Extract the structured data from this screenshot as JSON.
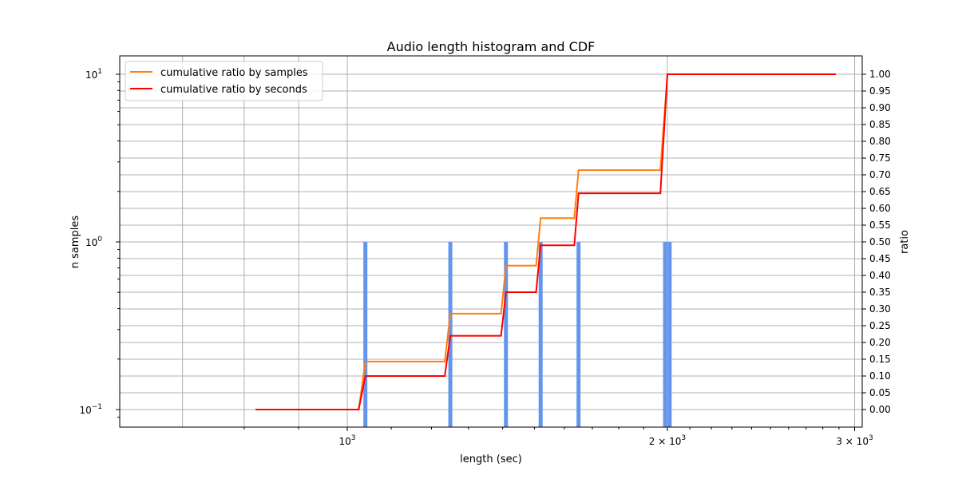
{
  "chart_data": {
    "type": "bar+line",
    "title": "Audio length histogram and CDF",
    "xlabel": "length (sec)",
    "ylabel": "n samples",
    "ylabel_right": "ratio",
    "xscale": "log",
    "yscale": "log",
    "xlim": [
      720,
      3100
    ],
    "ylim": [
      0.08,
      12.5
    ],
    "ylim_right": [
      -0.05,
      1.05
    ],
    "grid": true,
    "legend_position": "upper left",
    "x_ticks": [
      {
        "value": 1000,
        "label": "10^3",
        "base": "10",
        "exp": "3"
      },
      {
        "value": 2000,
        "label": "2×10^3",
        "base": "2 × 10",
        "exp": "3"
      },
      {
        "value": 3000,
        "label": "3×10^3",
        "base": "3 × 10",
        "exp": "3"
      }
    ],
    "y_ticks": [
      {
        "value": 0.1,
        "base": "10",
        "exp": "−1"
      },
      {
        "value": 1,
        "base": "10",
        "exp": "0"
      },
      {
        "value": 10,
        "base": "10",
        "exp": "1"
      }
    ],
    "y_ticks_right": [
      "0.00",
      "0.05",
      "0.10",
      "0.15",
      "0.20",
      "0.25",
      "0.30",
      "0.35",
      "0.40",
      "0.45",
      "0.50",
      "0.55",
      "0.60",
      "0.65",
      "0.70",
      "0.75",
      "0.80",
      "0.85",
      "0.90",
      "0.95",
      "1.00"
    ],
    "histogram": {
      "color": "#6495ed",
      "bins_sec": [
        1040,
        1250,
        1410,
        1520,
        1650,
        1990,
        2010
      ],
      "counts": [
        1,
        1,
        1,
        1,
        1,
        1,
        1
      ]
    },
    "series": [
      {
        "name": "cumulative ratio by samples",
        "color": "#ff7f0e",
        "x": [
          820,
          1025,
          1040,
          1235,
          1250,
          1395,
          1410,
          1505,
          1520,
          1635,
          1650,
          1970,
          2000,
          2880
        ],
        "y": [
          0.0,
          0.0,
          0.143,
          0.143,
          0.286,
          0.286,
          0.429,
          0.429,
          0.571,
          0.571,
          0.714,
          0.714,
          1.0,
          1.0
        ]
      },
      {
        "name": "cumulative ratio by seconds",
        "color": "#ff0000",
        "x": [
          820,
          1025,
          1040,
          1235,
          1250,
          1395,
          1410,
          1505,
          1520,
          1635,
          1650,
          1970,
          2000,
          2880
        ],
        "y": [
          0.0,
          0.0,
          0.1,
          0.1,
          0.22,
          0.22,
          0.35,
          0.35,
          0.49,
          0.49,
          0.645,
          0.645,
          1.0,
          1.0
        ]
      }
    ]
  },
  "legend": {
    "items": [
      {
        "label": "cumulative ratio by samples",
        "color": "#ff7f0e"
      },
      {
        "label": "cumulative ratio by seconds",
        "color": "#ff0000"
      }
    ]
  }
}
